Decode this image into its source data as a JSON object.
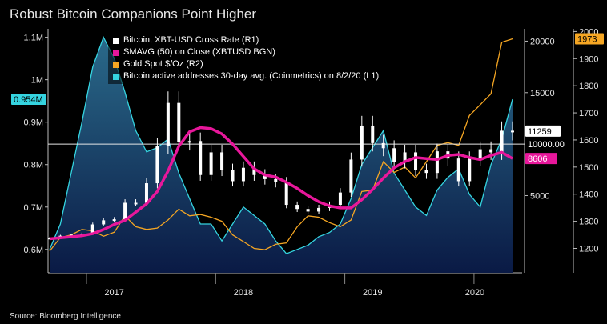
{
  "title": "Robust Bitcoin Companions Point Higher",
  "source": "Source: Bloomberg Intelligence",
  "legend": [
    {
      "label": "Bitcoin, XBT-USD Cross Rate  (R1)",
      "color": "#ffffff"
    },
    {
      "label": "SMAVG (50)  on Close (XBTUSD BGN)",
      "color": "#e8179b"
    },
    {
      "label": "Gold Spot $/Oz  (R2)",
      "color": "#f5a623"
    },
    {
      "label": "Bitcoin active addresses 30-day avg. (Coinmetrics) on 8/2/20 (L1)",
      "color": "#35d4e0"
    }
  ],
  "callouts": {
    "left_active": "0.954M",
    "gold_last": "1973",
    "btc_last": "11259",
    "btc_ref": "10000.00",
    "sma_last": "8606"
  },
  "chart_data": {
    "type": "line",
    "title": "Robust Bitcoin Companions Point Higher",
    "x_ticks": [
      "2017",
      "2018",
      "2019",
      "2020"
    ],
    "x_range": [
      "2017-01",
      "2020-08"
    ],
    "left_axis": {
      "ticks": [
        "0.6M",
        "0.7M",
        "0.8M",
        "0.9M",
        "1M",
        "1.1M"
      ],
      "ylim": [
        0.545,
        1.12
      ]
    },
    "right1_axis": {
      "ticks": [
        "5000",
        "15000",
        "20000"
      ],
      "ylim": [
        -2500,
        21200
      ]
    },
    "right2_axis": {
      "ticks": [
        "1200",
        "1300",
        "1400",
        "1500",
        "1600",
        "1700",
        "1800",
        "1900",
        "2000"
      ],
      "ylim": [
        1110,
        2010
      ]
    },
    "reference_line": {
      "axis": "right1",
      "value": 10000
    },
    "x": [
      "2017-01",
      "2017-02",
      "2017-03",
      "2017-04",
      "2017-05",
      "2017-06",
      "2017-07",
      "2017-08",
      "2017-09",
      "2017-10",
      "2017-11",
      "2017-12",
      "2018-01",
      "2018-02",
      "2018-03",
      "2018-04",
      "2018-05",
      "2018-06",
      "2018-07",
      "2018-08",
      "2018-09",
      "2018-10",
      "2018-11",
      "2018-12",
      "2019-01",
      "2019-02",
      "2019-03",
      "2019-04",
      "2019-05",
      "2019-06",
      "2019-07",
      "2019-08",
      "2019-09",
      "2019-10",
      "2019-11",
      "2019-12",
      "2020-01",
      "2020-02",
      "2020-03",
      "2020-04",
      "2020-05",
      "2020-06",
      "2020-07",
      "2020-08"
    ],
    "series": [
      {
        "name": "Bitcoin, XBT-USD Cross Rate  (R1)",
        "axis": "right1",
        "values": [
          900,
          1100,
          1200,
          1300,
          2200,
          2600,
          2700,
          4300,
          4300,
          6200,
          9800,
          14000,
          10200,
          10300,
          7000,
          9200,
          7500,
          6400,
          7700,
          7000,
          6600,
          6300,
          4100,
          3700,
          3450,
          3800,
          4100,
          5300,
          8500,
          11800,
          10100,
          9600,
          8300,
          9200,
          7500,
          7200,
          9300,
          8600,
          6400,
          8600,
          9500,
          9200,
          11300,
          11259
        ]
      },
      {
        "name": "SMAVG (50)  on Close (XBTUSD BGN)",
        "axis": "right1",
        "values": [
          800,
          900,
          1000,
          1100,
          1300,
          1700,
          2200,
          2600,
          3400,
          4200,
          5400,
          7400,
          9800,
          11200,
          11600,
          11500,
          11000,
          10000,
          8800,
          7600,
          7000,
          6800,
          6300,
          5700,
          5000,
          4400,
          4000,
          3800,
          3800,
          4600,
          5600,
          6700,
          7700,
          8300,
          8700,
          8600,
          8500,
          8900,
          9000,
          8700,
          8500,
          8900,
          9200,
          8606
        ]
      },
      {
        "name": "Gold Spot $/Oz  (R2)",
        "axis": "right2",
        "values": [
          1190,
          1240,
          1250,
          1270,
          1265,
          1245,
          1260,
          1320,
          1280,
          1270,
          1275,
          1305,
          1345,
          1320,
          1325,
          1315,
          1300,
          1250,
          1225,
          1200,
          1195,
          1215,
          1220,
          1280,
          1320,
          1315,
          1295,
          1280,
          1305,
          1410,
          1415,
          1520,
          1480,
          1500,
          1460,
          1520,
          1580,
          1590,
          1580,
          1690,
          1730,
          1770,
          1960,
          1973
        ]
      },
      {
        "name": "Bitcoin active addresses 30-day avg. (Coinmetrics) on 8/2/20 (L1)",
        "axis": "left",
        "values": [
          0.6,
          0.66,
          0.78,
          0.9,
          1.03,
          1.1,
          1.05,
          0.97,
          0.88,
          0.83,
          0.84,
          0.86,
          0.78,
          0.72,
          0.66,
          0.66,
          0.62,
          0.66,
          0.7,
          0.68,
          0.66,
          0.62,
          0.59,
          0.6,
          0.61,
          0.63,
          0.64,
          0.66,
          0.72,
          0.8,
          0.84,
          0.88,
          0.78,
          0.74,
          0.7,
          0.68,
          0.74,
          0.77,
          0.79,
          0.73,
          0.7,
          0.8,
          0.86,
          0.954
        ]
      }
    ]
  }
}
